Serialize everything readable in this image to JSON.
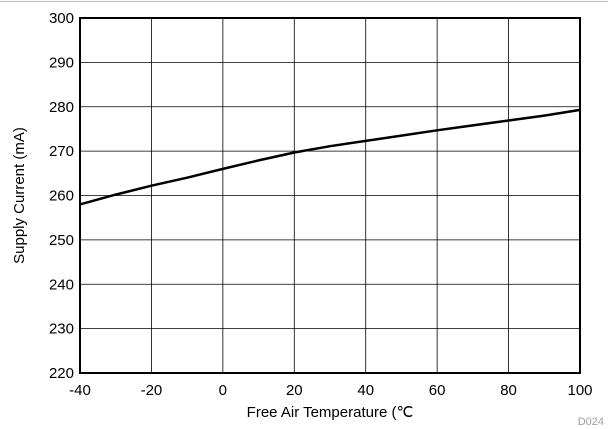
{
  "chart_data": {
    "type": "line",
    "xlabel": "Free Air Temperature (℃",
    "ylabel": "Supply Current (mA)",
    "xlim": [
      -40,
      100
    ],
    "ylim": [
      220,
      300
    ],
    "x_ticks": [
      -40,
      -20,
      0,
      20,
      40,
      60,
      80,
      100
    ],
    "y_ticks": [
      220,
      230,
      240,
      250,
      260,
      270,
      280,
      290,
      300
    ],
    "grid": true,
    "series": [
      {
        "x": [
          -40,
          -30,
          -20,
          -10,
          0,
          10,
          20,
          30,
          40,
          50,
          60,
          70,
          80,
          90,
          100
        ],
        "y": [
          258.0,
          260.2,
          262.2,
          264.0,
          266.0,
          267.9,
          269.7,
          271.1,
          272.3,
          273.5,
          274.7,
          275.8,
          276.9,
          278.0,
          279.3
        ],
        "color": "#000000"
      }
    ],
    "figure_id": "D024"
  }
}
